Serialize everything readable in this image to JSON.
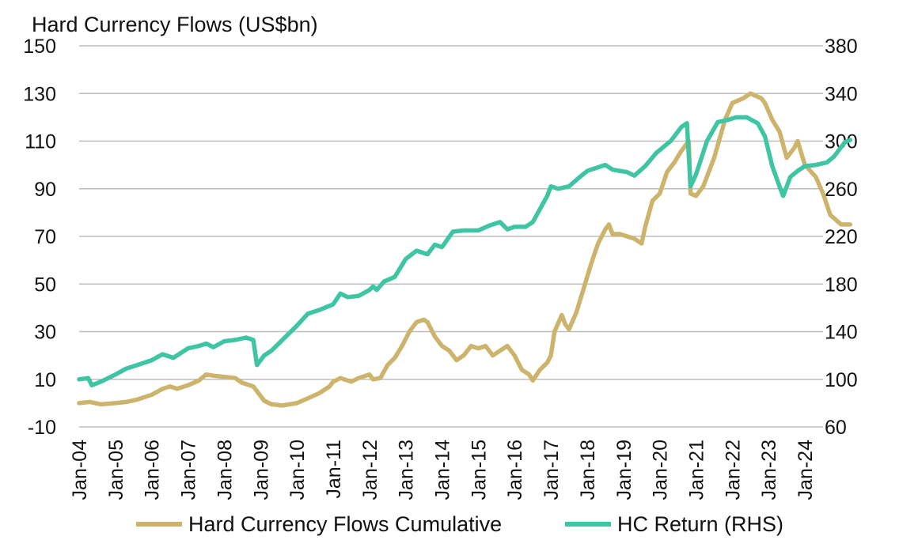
{
  "chart_data": {
    "type": "line",
    "title": "Hard Currency Flows (US$bn)",
    "x_tick_labels": [
      "Jan-04",
      "Jan-05",
      "Jan-06",
      "Jan-07",
      "Jan-08",
      "Jan-09",
      "Jan-10",
      "Jan-11",
      "Jan-12",
      "Jan-13",
      "Jan-14",
      "Jan-15",
      "Jan-16",
      "Jan-17",
      "Jan-18",
      "Jan-19",
      "Jan-20",
      "Jan-21",
      "Jan-22",
      "Jan-23",
      "Jan-24"
    ],
    "xlim": [
      2004.0,
      2024.5
    ],
    "y_left": {
      "ticks": [
        -10,
        10,
        30,
        50,
        70,
        90,
        110,
        130,
        150
      ],
      "tick_labels": [
        "-10",
        "10",
        "30",
        "50",
        "70",
        "90",
        "110",
        "130",
        "150"
      ],
      "ylim": [
        -10,
        150
      ]
    },
    "y_right": {
      "ticks": [
        60,
        100,
        140,
        180,
        220,
        260,
        300,
        340,
        380
      ],
      "tick_labels": [
        "60",
        "100",
        "140",
        "180",
        "220",
        "260",
        "300",
        "340",
        "380"
      ],
      "ylim": [
        60,
        380
      ]
    },
    "grid": "horizontal",
    "legend_position": "bottom",
    "series": [
      {
        "name": "Hard Currency Flows Cumulative",
        "axis": "left",
        "color": "#cdb46d",
        "points": [
          [
            2004.0,
            0
          ],
          [
            2004.3,
            0.5
          ],
          [
            2004.6,
            -0.5
          ],
          [
            2005.0,
            0
          ],
          [
            2005.3,
            0.5
          ],
          [
            2005.6,
            1.5
          ],
          [
            2006.0,
            3.5
          ],
          [
            2006.3,
            6
          ],
          [
            2006.5,
            7
          ],
          [
            2006.7,
            6
          ],
          [
            2007.0,
            7.5
          ],
          [
            2007.3,
            9.5
          ],
          [
            2007.5,
            12
          ],
          [
            2007.7,
            11.5
          ],
          [
            2008.0,
            11
          ],
          [
            2008.3,
            10.5
          ],
          [
            2008.5,
            8.5
          ],
          [
            2008.8,
            7
          ],
          [
            2008.9,
            5
          ],
          [
            2009.1,
            1
          ],
          [
            2009.3,
            -0.5
          ],
          [
            2009.6,
            -1
          ],
          [
            2010.0,
            0
          ],
          [
            2010.3,
            2
          ],
          [
            2010.6,
            4
          ],
          [
            2010.9,
            7
          ],
          [
            2011.0,
            9
          ],
          [
            2011.2,
            10.5
          ],
          [
            2011.5,
            9
          ],
          [
            2011.7,
            10.5
          ],
          [
            2012.0,
            12
          ],
          [
            2012.1,
            10
          ],
          [
            2012.3,
            10.5
          ],
          [
            2012.5,
            16
          ],
          [
            2012.7,
            19
          ],
          [
            2012.9,
            24
          ],
          [
            2013.1,
            30
          ],
          [
            2013.3,
            34
          ],
          [
            2013.5,
            35
          ],
          [
            2013.6,
            34
          ],
          [
            2013.8,
            28
          ],
          [
            2014.0,
            24
          ],
          [
            2014.2,
            22
          ],
          [
            2014.4,
            18
          ],
          [
            2014.6,
            20
          ],
          [
            2014.8,
            24
          ],
          [
            2015.0,
            23
          ],
          [
            2015.2,
            24
          ],
          [
            2015.4,
            20
          ],
          [
            2015.6,
            22
          ],
          [
            2015.8,
            24
          ],
          [
            2016.0,
            20
          ],
          [
            2016.2,
            14
          ],
          [
            2016.4,
            12
          ],
          [
            2016.5,
            9.5
          ],
          [
            2016.7,
            14
          ],
          [
            2016.9,
            17
          ],
          [
            2017.0,
            20
          ],
          [
            2017.1,
            30
          ],
          [
            2017.3,
            37
          ],
          [
            2017.4,
            33
          ],
          [
            2017.5,
            31
          ],
          [
            2017.7,
            38
          ],
          [
            2017.9,
            48
          ],
          [
            2018.1,
            58
          ],
          [
            2018.3,
            67
          ],
          [
            2018.5,
            73
          ],
          [
            2018.6,
            75
          ],
          [
            2018.7,
            71
          ],
          [
            2018.9,
            71
          ],
          [
            2019.1,
            70
          ],
          [
            2019.3,
            69
          ],
          [
            2019.5,
            67
          ],
          [
            2019.6,
            74
          ],
          [
            2019.8,
            85
          ],
          [
            2020.0,
            88
          ],
          [
            2020.2,
            97
          ],
          [
            2020.4,
            101
          ],
          [
            2020.6,
            106
          ],
          [
            2020.8,
            110
          ],
          [
            2020.85,
            88
          ],
          [
            2021.0,
            87
          ],
          [
            2021.2,
            91
          ],
          [
            2021.5,
            103
          ],
          [
            2021.8,
            119
          ],
          [
            2022.0,
            126
          ],
          [
            2022.3,
            128
          ],
          [
            2022.5,
            130
          ],
          [
            2022.8,
            128
          ],
          [
            2022.9,
            126
          ],
          [
            2023.1,
            119
          ],
          [
            2023.3,
            114
          ],
          [
            2023.5,
            103
          ],
          [
            2023.7,
            107
          ],
          [
            2023.8,
            110
          ],
          [
            2024.0,
            100
          ],
          [
            2024.3,
            95
          ],
          [
            2024.5,
            88
          ],
          [
            2024.7,
            79
          ],
          [
            2025.0,
            75
          ],
          [
            2025.25,
            75
          ]
        ]
      },
      {
        "name": "HC Return (RHS)",
        "axis": "right",
        "color": "#3fc4a4",
        "points": [
          [
            2004.0,
            100
          ],
          [
            2004.25,
            101
          ],
          [
            2004.35,
            95
          ],
          [
            2004.6,
            98
          ],
          [
            2005.0,
            104
          ],
          [
            2005.3,
            109
          ],
          [
            2005.6,
            112
          ],
          [
            2006.0,
            116
          ],
          [
            2006.3,
            121
          ],
          [
            2006.6,
            118
          ],
          [
            2007.0,
            126
          ],
          [
            2007.3,
            128
          ],
          [
            2007.5,
            130
          ],
          [
            2007.7,
            127
          ],
          [
            2008.0,
            132
          ],
          [
            2008.3,
            133
          ],
          [
            2008.6,
            135
          ],
          [
            2008.8,
            133
          ],
          [
            2008.9,
            112
          ],
          [
            2009.1,
            120
          ],
          [
            2009.3,
            124
          ],
          [
            2009.6,
            133
          ],
          [
            2010.0,
            145
          ],
          [
            2010.3,
            155
          ],
          [
            2010.6,
            158
          ],
          [
            2011.0,
            163
          ],
          [
            2011.2,
            172
          ],
          [
            2011.4,
            169
          ],
          [
            2011.7,
            170
          ],
          [
            2012.0,
            175
          ],
          [
            2012.1,
            178
          ],
          [
            2012.2,
            175
          ],
          [
            2012.4,
            182
          ],
          [
            2012.7,
            186
          ],
          [
            2013.0,
            201
          ],
          [
            2013.3,
            208
          ],
          [
            2013.6,
            205
          ],
          [
            2013.8,
            213
          ],
          [
            2014.0,
            211
          ],
          [
            2014.3,
            224
          ],
          [
            2014.6,
            225
          ],
          [
            2015.0,
            225
          ],
          [
            2015.3,
            229
          ],
          [
            2015.6,
            232
          ],
          [
            2015.8,
            226
          ],
          [
            2016.0,
            228
          ],
          [
            2016.3,
            228
          ],
          [
            2016.5,
            232
          ],
          [
            2016.7,
            243
          ],
          [
            2016.9,
            254
          ],
          [
            2017.0,
            262
          ],
          [
            2017.2,
            260
          ],
          [
            2017.5,
            262
          ],
          [
            2017.8,
            270
          ],
          [
            2018.0,
            275
          ],
          [
            2018.3,
            278
          ],
          [
            2018.5,
            280
          ],
          [
            2018.7,
            276
          ],
          [
            2018.9,
            275
          ],
          [
            2019.1,
            274
          ],
          [
            2019.3,
            271
          ],
          [
            2019.6,
            279
          ],
          [
            2019.9,
            290
          ],
          [
            2020.1,
            295
          ],
          [
            2020.3,
            300
          ],
          [
            2020.6,
            312
          ],
          [
            2020.75,
            315
          ],
          [
            2020.85,
            262
          ],
          [
            2021.0,
            272
          ],
          [
            2021.3,
            300
          ],
          [
            2021.6,
            316
          ],
          [
            2021.9,
            318
          ],
          [
            2022.1,
            320
          ],
          [
            2022.4,
            320
          ],
          [
            2022.7,
            315
          ],
          [
            2022.9,
            304
          ],
          [
            2023.1,
            279
          ],
          [
            2023.3,
            262
          ],
          [
            2023.4,
            254
          ],
          [
            2023.6,
            270
          ],
          [
            2023.8,
            275
          ],
          [
            2024.0,
            279
          ],
          [
            2024.3,
            280
          ],
          [
            2024.6,
            282
          ],
          [
            2024.8,
            287
          ],
          [
            2025.0,
            295
          ],
          [
            2025.1,
            299
          ],
          [
            2025.25,
            301
          ]
        ]
      }
    ]
  }
}
